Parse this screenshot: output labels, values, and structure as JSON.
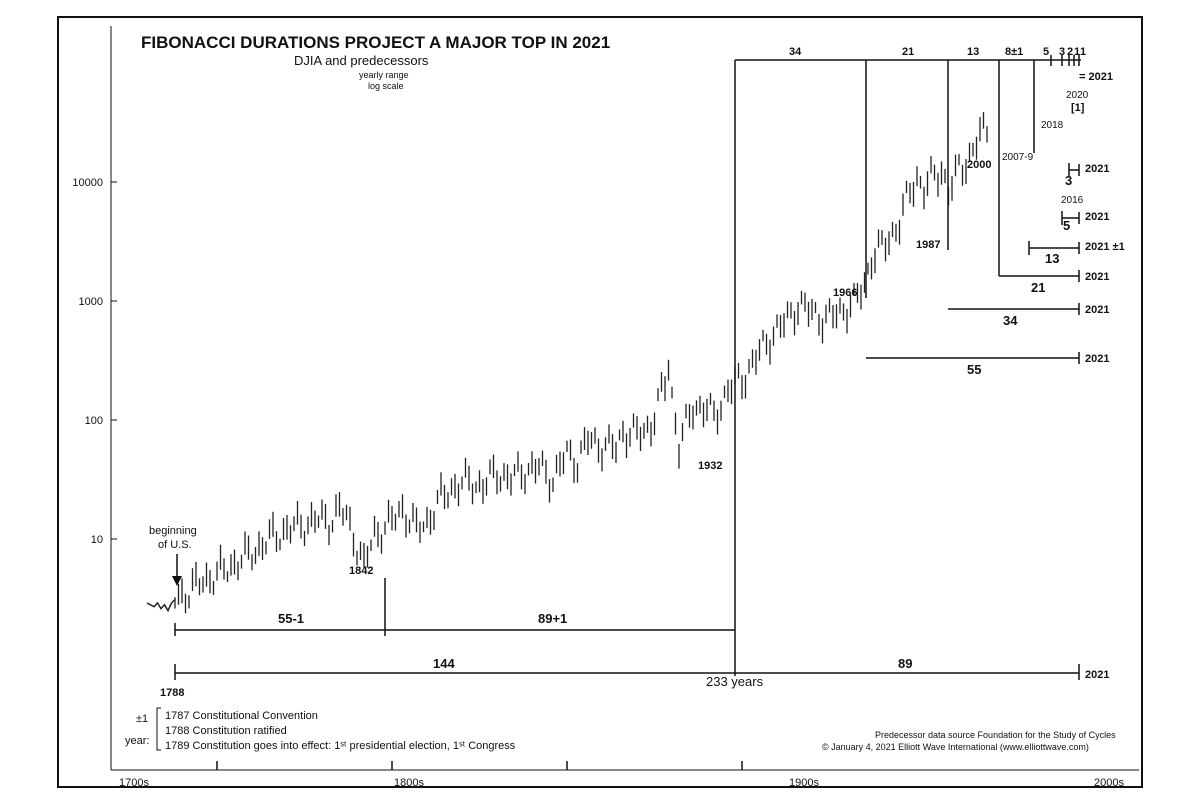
{
  "chart_data": {
    "type": "line",
    "title": "FIBONACCI DURATIONS PROJECT A MAJOR TOP IN 2021",
    "subtitle": "DJIA and predecessors",
    "subtitle_lines": [
      "yearly range",
      "log scale"
    ],
    "scale": "log",
    "ylim": [
      1,
      40000
    ],
    "y_ticks": [
      "10",
      "100",
      "1000",
      "10000"
    ],
    "x_ticks": [
      "1700s",
      "1800s",
      "1900s",
      "2000s"
    ],
    "series": [
      {
        "values": [
          [
            1780,
            3.0
          ],
          [
            1784,
            2.6
          ],
          [
            1788,
            3.2
          ],
          [
            1792,
            3.6
          ],
          [
            1796,
            4.5
          ],
          [
            1800,
            5.0
          ],
          [
            1804,
            6.0
          ],
          [
            1808,
            7.0
          ],
          [
            1812,
            8.5
          ],
          [
            1816,
            10.5
          ],
          [
            1820,
            12.0
          ],
          [
            1824,
            13.0
          ],
          [
            1828,
            14.5
          ],
          [
            1832,
            14.0
          ],
          [
            1835,
            18.0
          ],
          [
            1837,
            15.0
          ],
          [
            1840,
            9.0
          ],
          [
            1842,
            6.0
          ],
          [
            1845,
            11.0
          ],
          [
            1850,
            14.0
          ],
          [
            1853,
            18.0
          ],
          [
            1857,
            12.0
          ],
          [
            1860,
            14.0
          ],
          [
            1864,
            22.0
          ],
          [
            1868,
            28.0
          ],
          [
            1872,
            30.0
          ],
          [
            1876,
            28.0
          ],
          [
            1880,
            36.0
          ],
          [
            1884,
            32.0
          ],
          [
            1888,
            38.0
          ],
          [
            1892,
            40.0
          ],
          [
            1896,
            32.0
          ],
          [
            1900,
            52.0
          ],
          [
            1903,
            45.0
          ],
          [
            1906,
            68.0
          ],
          [
            1909,
            62.0
          ],
          [
            1914,
            58.0
          ],
          [
            1916,
            80.0
          ],
          [
            1920,
            75.0
          ],
          [
            1924,
            90.0
          ],
          [
            1928,
            200.0
          ],
          [
            1929,
            300.0
          ],
          [
            1930,
            160.0
          ],
          [
            1932,
            60.0
          ],
          [
            1936,
            130.0
          ],
          [
            1940,
            125.0
          ],
          [
            1942,
            105.0
          ],
          [
            1946,
            180.0
          ],
          [
            1950,
            220.0
          ],
          [
            1954,
            330.0
          ],
          [
            1958,
            500.0
          ],
          [
            1962,
            650.0
          ],
          [
            1966,
            930.0
          ],
          [
            1970,
            800.0
          ],
          [
            1974,
            700.0
          ],
          [
            1978,
            820.0
          ],
          [
            1982,
            950.0
          ],
          [
            1985,
            1400.0
          ],
          [
            1987,
            2300.0
          ],
          [
            1990,
            2800.0
          ],
          [
            1995,
            4500.0
          ],
          [
            1998,
            8500.0
          ],
          [
            2000,
            11000.0
          ],
          [
            2002,
            8500.0
          ],
          [
            2004,
            10500.0
          ],
          [
            2007,
            13000.0
          ],
          [
            2009,
            8000.0
          ],
          [
            2012,
            13000.0
          ],
          [
            2016,
            17500.0
          ],
          [
            2018,
            25000.0
          ],
          [
            2020,
            28000.0
          ]
        ]
      }
    ],
    "pre_labels": [
      "beginning",
      "of U.S."
    ],
    "labels": {
      "y1842": "1842",
      "y1932": "1932",
      "y1966": "1966",
      "y1987": "1987",
      "y2000": "2000",
      "y2007": "2007-9",
      "y2016": "2016",
      "y2018": "2018",
      "y2020": "2020",
      "bracket1": "[1]",
      "eq2021": "= 2021",
      "y1788": "1788",
      "y233": "233 years"
    },
    "top_durations": [
      "34",
      "21",
      "13",
      "8±1",
      "5",
      "3",
      "2",
      "1",
      "1"
    ],
    "bottom_durations": {
      "a": "55-1",
      "b": "89+1",
      "c": "144",
      "d": "89"
    },
    "projections": [
      {
        "label": "3",
        "end": "2021"
      },
      {
        "label": "5",
        "end": "2021"
      },
      {
        "label": "13",
        "end": "2021 ±1"
      },
      {
        "label": "21",
        "end": "2021"
      },
      {
        "label": "34",
        "end": "2021"
      },
      {
        "label": "55",
        "end": "2021"
      },
      {
        "label": "89",
        "end": "2021"
      }
    ],
    "notes": {
      "pm": "±1",
      "year": "year:",
      "lines": [
        "1787 Constitutional Convention",
        "1788 Constitution ratified",
        "1789 Constitution goes into effect: 1ˢᵗ presidential election, 1ˢᵗ Congress"
      ]
    },
    "source": [
      "Predecessor data source Foundation for the Study of Cycles",
      "© January 4, 2021 Elliott Wave International (www.elliottwave.com)"
    ],
    "colors": {
      "line": "#222222",
      "text": "#111111"
    }
  }
}
